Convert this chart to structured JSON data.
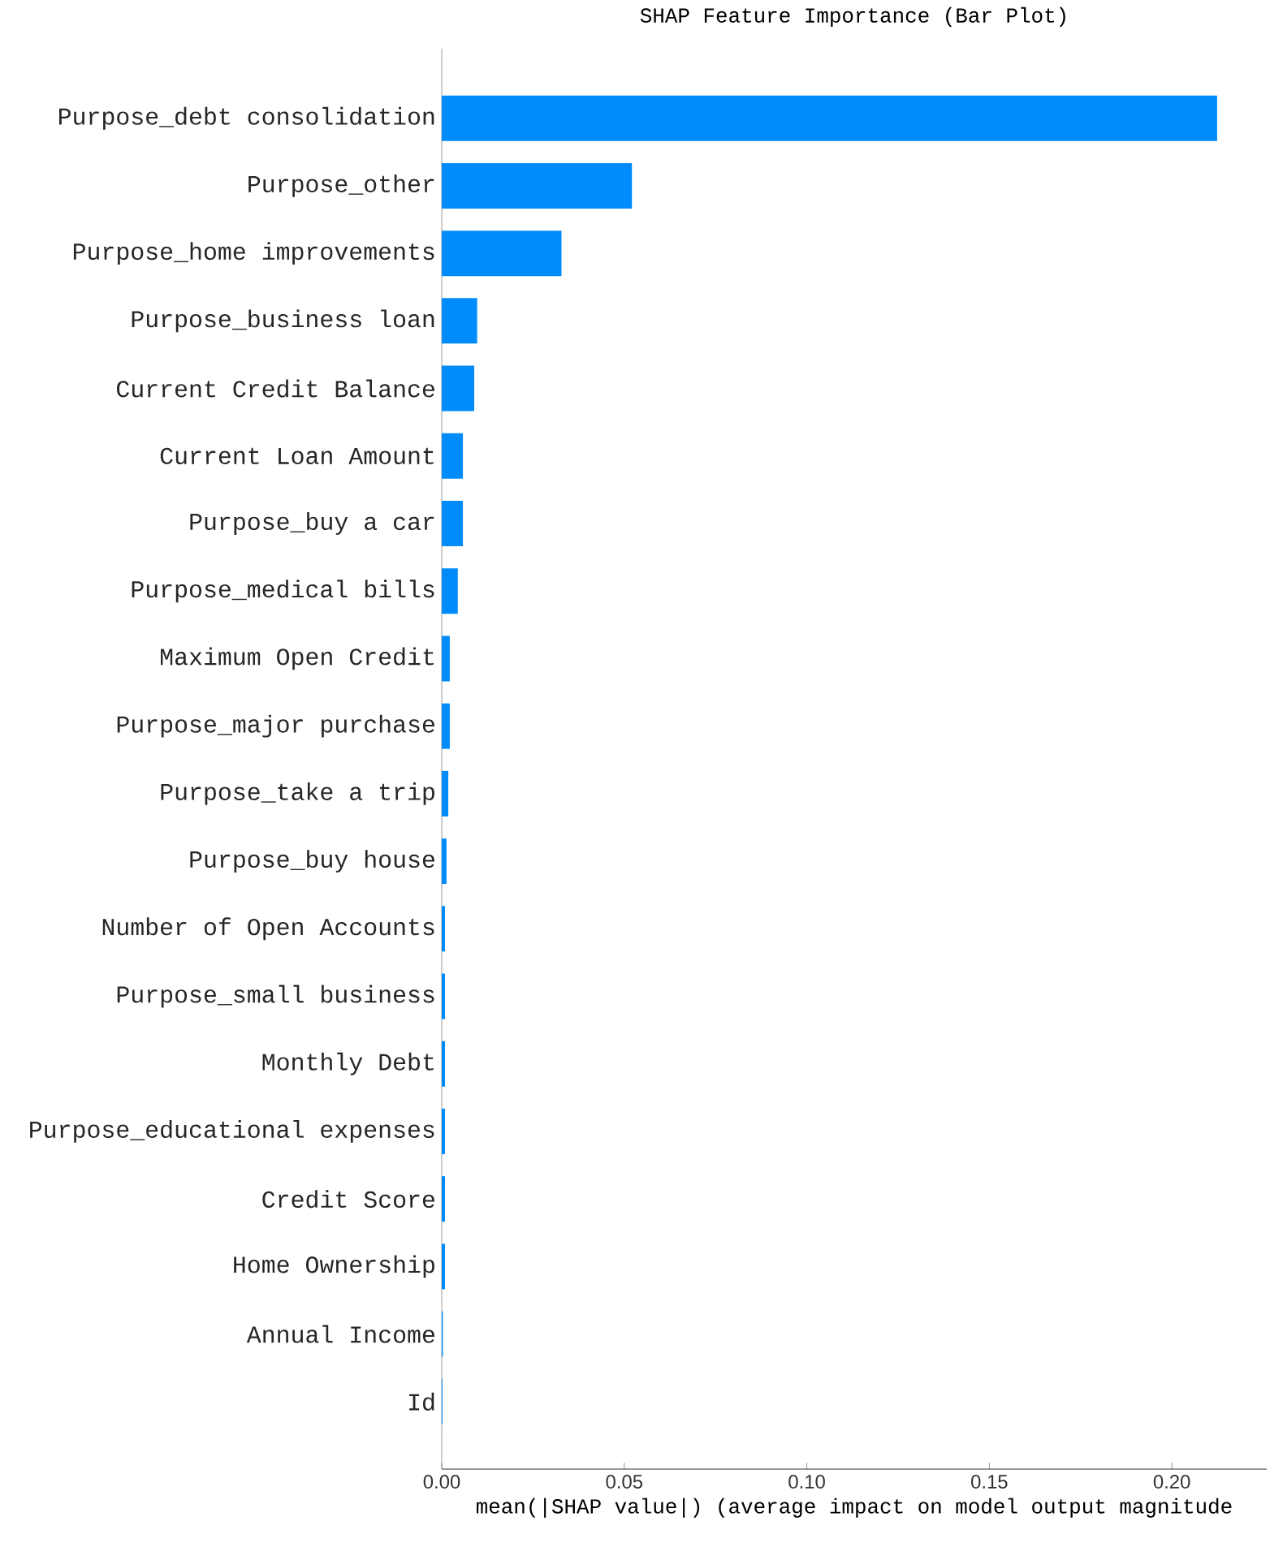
{
  "chart_data": {
    "type": "bar",
    "orientation": "horizontal",
    "title": "SHAP Feature Importance (Bar Plot)",
    "xlabel": "mean(|SHAP value|) (average impact on model output magnitude",
    "categories": [
      "Purpose_debt consolidation",
      "Purpose_other",
      "Purpose_home improvements",
      "Purpose_business loan",
      "Current Credit Balance",
      "Current Loan Amount",
      "Purpose_buy a car",
      "Purpose_medical bills",
      "Maximum Open Credit",
      "Purpose_major purchase",
      "Purpose_take a trip",
      "Purpose_buy house",
      "Number of Open Accounts",
      "Purpose_small business",
      "Monthly Debt",
      "Purpose_educational expenses",
      "Credit Score",
      "Home Ownership",
      "Annual Income",
      "Id"
    ],
    "values": [
      0.2124,
      0.0521,
      0.0328,
      0.0097,
      0.0089,
      0.0058,
      0.0058,
      0.0044,
      0.0022,
      0.0022,
      0.0018,
      0.0013,
      0.0009,
      0.0009,
      0.0009,
      0.0009,
      0.0009,
      0.0009,
      0.0003,
      0.0002
    ],
    "color": "#008bfb",
    "xlim": [
      0,
      0.226
    ],
    "xticks": [
      {
        "value": 0,
        "label": "0.00"
      },
      {
        "value": 0.05,
        "label": "0.05"
      },
      {
        "value": 0.1,
        "label": "0.10"
      },
      {
        "value": 0.15,
        "label": "0.15"
      },
      {
        "value": 0.2,
        "label": "0.20"
      }
    ]
  }
}
